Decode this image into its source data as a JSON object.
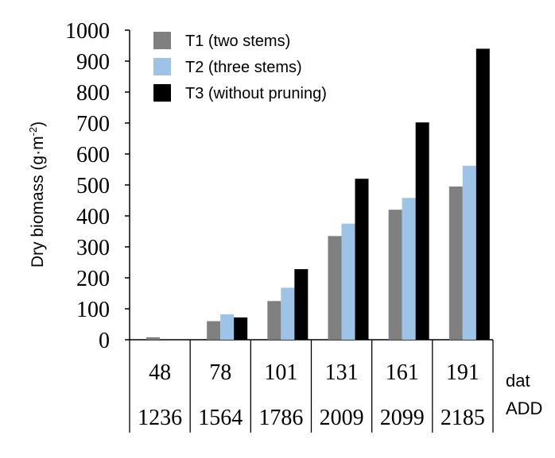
{
  "chart_data": {
    "type": "bar",
    "ylabel": "Dry biomass (g·m",
    "ylabel_sup": "-2",
    "ylabel_close": ")",
    "ylim": [
      0,
      1000
    ],
    "yticks": [
      0,
      100,
      200,
      300,
      400,
      500,
      600,
      700,
      800,
      900,
      1000
    ],
    "categories": [
      "48",
      "78",
      "101",
      "131",
      "161",
      "191"
    ],
    "add": [
      "1236",
      "1564",
      "1786",
      "2009",
      "2099",
      "2185"
    ],
    "row_labels": {
      "dat": "dat",
      "add": "ADD"
    },
    "legend_position": "top-left",
    "series": [
      {
        "name": "T1 (two stems)",
        "color": "#808080",
        "values": [
          8,
          60,
          125,
          335,
          420,
          495
        ]
      },
      {
        "name": "T2 (three stems)",
        "color": "#9dc3e6",
        "values": [
          0,
          82,
          168,
          375,
          458,
          562
        ]
      },
      {
        "name": "T3 (without pruning)",
        "color": "#000000",
        "values": [
          0,
          72,
          228,
          520,
          702,
          940
        ]
      }
    ]
  }
}
